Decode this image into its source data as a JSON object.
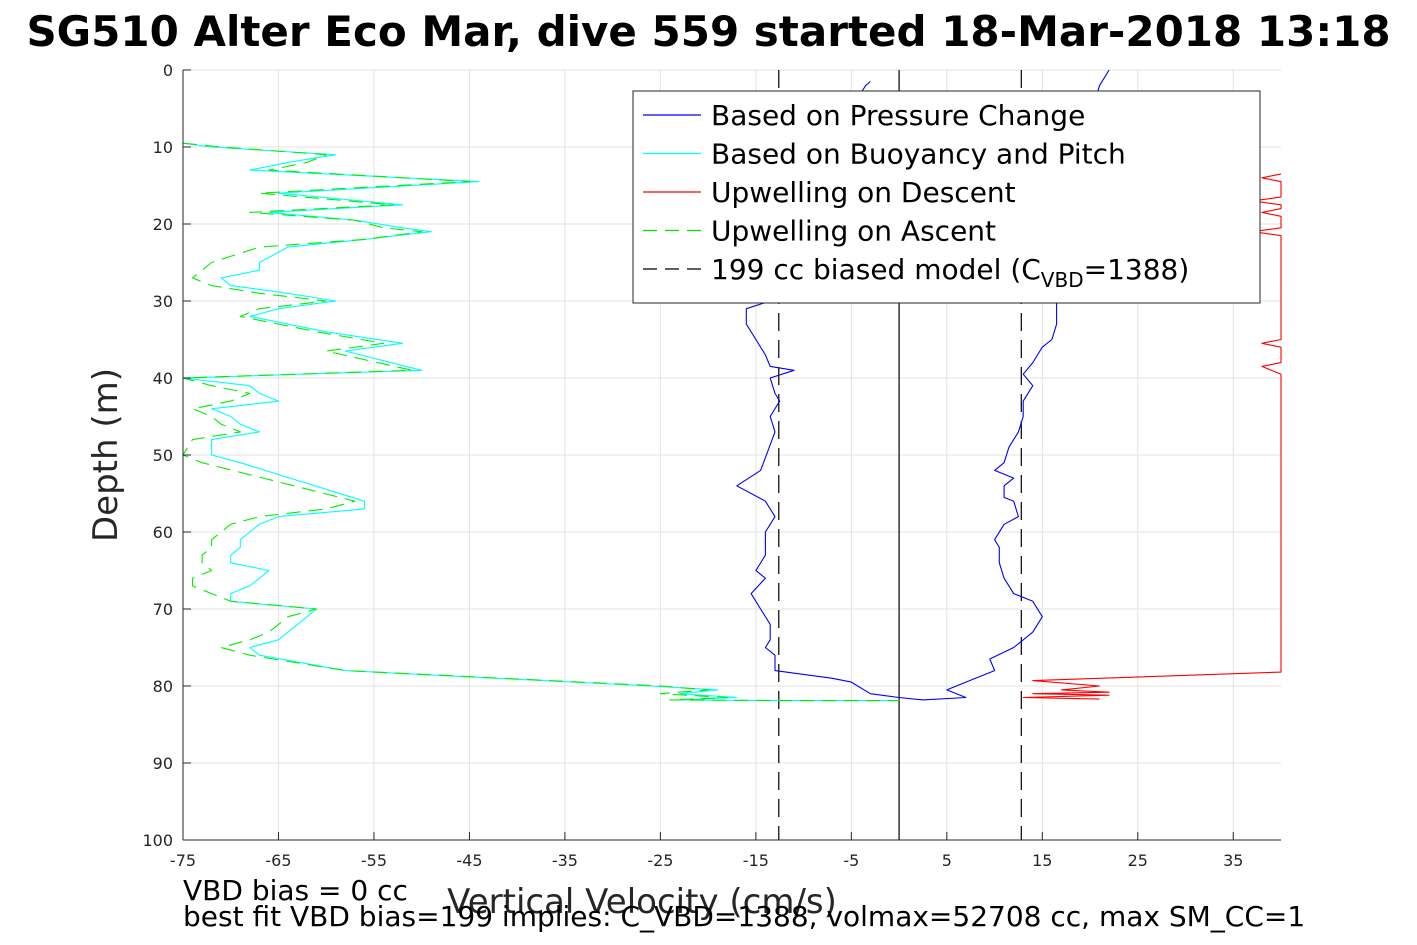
{
  "title": "SG510 Alter Eco Mar, dive 559 started 18-Mar-2018 13:18",
  "footer": {
    "line1": "VBD bias = 0 cc",
    "line2": "best fit VBD bias=199 implies: C_VBD=1388, volmax=52708 cc, max SM_CC=1"
  },
  "chart_data": {
    "type": "line",
    "xlabel": "Vertical Velocity (cm/s)",
    "ylabel": "Depth (m)",
    "xlim": [
      -75,
      40
    ],
    "ylim": [
      0,
      100
    ],
    "y_reversed": true,
    "grid": true,
    "legend_position": "top-right",
    "x_ticks": [
      "-75",
      "-65",
      "-55",
      "-45",
      "-35",
      "-25",
      "-15",
      "-5",
      "5",
      "15",
      "25",
      "35"
    ],
    "y_ticks": [
      "0",
      "10",
      "20",
      "30",
      "40",
      "50",
      "60",
      "70",
      "80",
      "90",
      "100"
    ],
    "legend": [
      {
        "label": "Based on Pressure Change",
        "color": "#0000ff",
        "style": "solid"
      },
      {
        "label": "Based on Buoyancy and Pitch",
        "color": "#00ffff",
        "style": "solid"
      },
      {
        "label": "Upwelling on Descent",
        "color": "#ff0000",
        "style": "solid"
      },
      {
        "label": "Upwelling on Ascent",
        "color": "#00dd00",
        "style": "dashed"
      },
      {
        "label_main": "199 cc biased model (C",
        "label_sub": "VBD",
        "label_end": "=1388)",
        "color": "#000000",
        "style": "dashed"
      }
    ],
    "series": [
      {
        "name": "Based on Pressure Change",
        "color": "#0000ff",
        "dash": "",
        "points": [
          [
            -3,
            1.5
          ],
          [
            -3.5,
            2
          ],
          [
            -4,
            3
          ],
          [
            -13.5,
            30
          ],
          [
            -16,
            31
          ],
          [
            -16,
            33
          ],
          [
            -15,
            35
          ],
          [
            -14,
            37
          ],
          [
            -13.5,
            38.5
          ],
          [
            -11,
            39
          ],
          [
            -13.5,
            40
          ],
          [
            -13,
            42
          ],
          [
            -12.5,
            43
          ],
          [
            -13.5,
            45
          ],
          [
            -13,
            47
          ],
          [
            -14.5,
            52
          ],
          [
            -17,
            54
          ],
          [
            -14,
            56
          ],
          [
            -13,
            58
          ],
          [
            -14,
            60
          ],
          [
            -14,
            63
          ],
          [
            -15,
            65
          ],
          [
            -14,
            66
          ],
          [
            -15.5,
            68
          ],
          [
            -14.5,
            70
          ],
          [
            -13.5,
            72
          ],
          [
            -13.5,
            74
          ],
          [
            -14,
            75
          ],
          [
            -13,
            76
          ],
          [
            -13,
            78
          ],
          [
            -7,
            79
          ],
          [
            -5,
            79.5
          ],
          [
            -3,
            81
          ],
          [
            0,
            81.5
          ],
          [
            2.5,
            81.8
          ],
          [
            7,
            81.5
          ],
          [
            6,
            81
          ],
          [
            5,
            80.5
          ],
          [
            8,
            79
          ],
          [
            10,
            78
          ],
          [
            9.5,
            76.5
          ],
          [
            12,
            75
          ],
          [
            14,
            73
          ],
          [
            15,
            71
          ],
          [
            14,
            69
          ],
          [
            12,
            68
          ],
          [
            11,
            66
          ],
          [
            10.5,
            64
          ],
          [
            10.5,
            62
          ],
          [
            10,
            61
          ],
          [
            11,
            59
          ],
          [
            12.5,
            58
          ],
          [
            12,
            56
          ],
          [
            11,
            55.5
          ],
          [
            11,
            54
          ],
          [
            12,
            53
          ],
          [
            10,
            52
          ],
          [
            11,
            51
          ],
          [
            11.5,
            49
          ],
          [
            12.5,
            47
          ],
          [
            13,
            45
          ],
          [
            13,
            43
          ],
          [
            14,
            41
          ],
          [
            13,
            39.5
          ],
          [
            14,
            38
          ],
          [
            14.5,
            37
          ],
          [
            15,
            36
          ],
          [
            16,
            35
          ],
          [
            16.5,
            33
          ],
          [
            16.5,
            30
          ],
          [
            17,
            28
          ],
          [
            17,
            22
          ],
          [
            18,
            16
          ],
          [
            20,
            6
          ],
          [
            21,
            2
          ],
          [
            22,
            0
          ]
        ]
      },
      {
        "name": "Based on Buoyancy and Pitch",
        "color": "#00ffff",
        "dash": "",
        "points": [
          [
            -75,
            9.5
          ],
          [
            -72,
            10
          ],
          [
            -59,
            11
          ],
          [
            -64,
            12
          ],
          [
            -68,
            13
          ],
          [
            -44,
            14.5
          ],
          [
            -65,
            16
          ],
          [
            -52,
            17.5
          ],
          [
            -66,
            18.5
          ],
          [
            -57,
            19.5
          ],
          [
            -52,
            20.5
          ],
          [
            -49,
            21
          ],
          [
            -56,
            22
          ],
          [
            -64,
            23
          ],
          [
            -67,
            25
          ],
          [
            -67,
            26
          ],
          [
            -71,
            27
          ],
          [
            -70,
            28
          ],
          [
            -64,
            29
          ],
          [
            -59,
            30
          ],
          [
            -65,
            31
          ],
          [
            -68,
            32
          ],
          [
            -60,
            34
          ],
          [
            -52,
            35.5
          ],
          [
            -58,
            36.5
          ],
          [
            -50,
            39
          ],
          [
            -75,
            40
          ],
          [
            -68,
            41
          ],
          [
            -67,
            42
          ],
          [
            -65,
            43
          ],
          [
            -72,
            44
          ],
          [
            -70,
            45
          ],
          [
            -69,
            46
          ],
          [
            -67,
            47
          ],
          [
            -72,
            48
          ],
          [
            -72,
            50
          ],
          [
            -69,
            51
          ],
          [
            -56,
            56
          ],
          [
            -56,
            57
          ],
          [
            -65,
            58
          ],
          [
            -67,
            59
          ],
          [
            -68,
            60
          ],
          [
            -69,
            61
          ],
          [
            -69,
            62
          ],
          [
            -70,
            63
          ],
          [
            -70,
            64
          ],
          [
            -66,
            65
          ],
          [
            -67,
            66
          ],
          [
            -68,
            67
          ],
          [
            -70,
            68
          ],
          [
            -70,
            69
          ],
          [
            -61,
            70
          ],
          [
            -62,
            71
          ],
          [
            -63,
            72
          ],
          [
            -64,
            73
          ],
          [
            -65,
            74
          ],
          [
            -68,
            75
          ],
          [
            -67,
            76
          ],
          [
            -58,
            78
          ],
          [
            -26,
            80
          ],
          [
            -19,
            80.5
          ],
          [
            -23,
            81
          ],
          [
            -17,
            81.5
          ],
          [
            -23,
            81.8
          ],
          [
            -12,
            81.9
          ],
          [
            0,
            81.9
          ]
        ]
      },
      {
        "name": "Upwelling on Ascent",
        "color": "#00ee00",
        "dash": "14 8",
        "points": [
          [
            -75,
            9.5
          ],
          [
            -71,
            10
          ],
          [
            -60,
            11
          ],
          [
            -62,
            12
          ],
          [
            -66,
            13
          ],
          [
            -45,
            14.5
          ],
          [
            -67,
            16
          ],
          [
            -53,
            17.5
          ],
          [
            -68,
            18.5
          ],
          [
            -57,
            19.5
          ],
          [
            -54,
            20.5
          ],
          [
            -50,
            21
          ],
          [
            -56,
            22
          ],
          [
            -67,
            23
          ],
          [
            -72,
            25
          ],
          [
            -73,
            26
          ],
          [
            -74,
            27
          ],
          [
            -72,
            28
          ],
          [
            -67,
            29
          ],
          [
            -60,
            30
          ],
          [
            -67,
            31
          ],
          [
            -69,
            32
          ],
          [
            -61,
            34
          ],
          [
            -54,
            35.5
          ],
          [
            -60,
            36.5
          ],
          [
            -51,
            39
          ],
          [
            -75,
            40
          ],
          [
            -72,
            41
          ],
          [
            -68,
            42
          ],
          [
            -70,
            43
          ],
          [
            -74,
            44
          ],
          [
            -72,
            45
          ],
          [
            -71,
            46
          ],
          [
            -69,
            47
          ],
          [
            -74,
            48
          ],
          [
            -75,
            50
          ],
          [
            -73,
            51
          ],
          [
            -57,
            56
          ],
          [
            -60,
            57
          ],
          [
            -67,
            58
          ],
          [
            -70,
            59
          ],
          [
            -71,
            60
          ],
          [
            -72,
            61
          ],
          [
            -72,
            62
          ],
          [
            -73,
            63
          ],
          [
            -73,
            64
          ],
          [
            -72,
            65
          ],
          [
            -74,
            66
          ],
          [
            -74,
            67
          ],
          [
            -72,
            68
          ],
          [
            -70,
            69
          ],
          [
            -61,
            70
          ],
          [
            -64,
            71
          ],
          [
            -65,
            72
          ],
          [
            -66,
            73
          ],
          [
            -68,
            74
          ],
          [
            -71,
            75
          ],
          [
            -68,
            76
          ],
          [
            -58,
            78
          ],
          [
            -25,
            80
          ],
          [
            -20,
            80.5
          ],
          [
            -25,
            81
          ],
          [
            -18,
            81.5
          ],
          [
            -24,
            81.8
          ],
          [
            -12,
            81.9
          ],
          [
            0,
            81.9
          ]
        ]
      },
      {
        "name": "Upwelling on Descent",
        "color": "#ff0000",
        "dash": "",
        "points": [
          [
            40,
            13.5
          ],
          [
            38,
            14
          ],
          [
            40,
            14.5
          ],
          [
            40,
            16.5
          ],
          [
            37,
            17
          ],
          [
            40,
            17.5
          ],
          [
            40,
            18
          ],
          [
            38,
            18.5
          ],
          [
            40,
            19
          ],
          [
            40,
            20.5
          ],
          [
            37,
            21
          ],
          [
            40,
            21.5
          ],
          [
            40,
            35
          ],
          [
            38,
            35.5
          ],
          [
            40,
            36
          ],
          [
            40,
            38
          ],
          [
            38,
            38.5
          ],
          [
            40,
            39.5
          ],
          [
            40,
            78.2
          ],
          [
            14,
            79.3
          ],
          [
            21,
            80
          ],
          [
            17,
            80.5
          ],
          [
            22,
            80.8
          ],
          [
            14,
            81
          ],
          [
            22,
            81.2
          ],
          [
            13,
            81.5
          ],
          [
            21,
            81.7
          ]
        ]
      }
    ],
    "vertical_lines": [
      {
        "x": -12.6,
        "color": "#000000",
        "dash": "18 9"
      },
      {
        "x": 12.8,
        "color": "#000000",
        "dash": "18 9"
      },
      {
        "x": 0,
        "color": "#000000",
        "dash": ""
      }
    ]
  }
}
